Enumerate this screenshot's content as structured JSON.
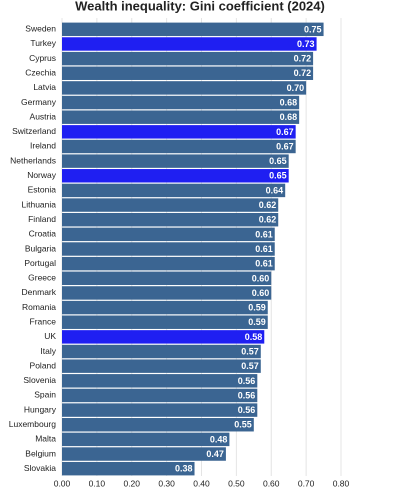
{
  "chart_data": {
    "type": "hbar",
    "title": "Wealth inequality: Gini coefficient (2024)",
    "categories": [
      "Sweden",
      "Turkey",
      "Cyprus",
      "Czechia",
      "Latvia",
      "Germany",
      "Austria",
      "Switzerland",
      "Ireland",
      "Netherlands",
      "Norway",
      "Estonia",
      "Lithuania",
      "Finland",
      "Croatia",
      "Bulgaria",
      "Portugal",
      "Greece",
      "Denmark",
      "Romania",
      "France",
      "UK",
      "Italy",
      "Poland",
      "Slovenia",
      "Spain",
      "Hungary",
      "Luxembourg",
      "Malta",
      "Belgium",
      "Slovakia"
    ],
    "values": [
      0.75,
      0.73,
      0.72,
      0.72,
      0.7,
      0.68,
      0.68,
      0.67,
      0.67,
      0.65,
      0.65,
      0.64,
      0.62,
      0.62,
      0.61,
      0.61,
      0.61,
      0.6,
      0.6,
      0.59,
      0.59,
      0.58,
      0.57,
      0.57,
      0.56,
      0.56,
      0.56,
      0.55,
      0.48,
      0.47,
      0.38
    ],
    "value_labels": [
      "0.75",
      "0.73",
      "0.72",
      "0.72",
      "0.70",
      "0.68",
      "0.68",
      "0.67",
      "0.67",
      "0.65",
      "0.65",
      "0.64",
      "0.62",
      "0.62",
      "0.61",
      "0.61",
      "0.61",
      "0.60",
      "0.60",
      "0.59",
      "0.59",
      "0.58",
      "0.57",
      "0.57",
      "0.56",
      "0.56",
      "0.56",
      "0.55",
      "0.48",
      "0.47",
      "0.38"
    ],
    "colors": [
      "#3b6592",
      "#1f1ff2",
      "#3b6592",
      "#3b6592",
      "#3b6592",
      "#3b6592",
      "#3b6592",
      "#1f1ff2",
      "#3b6592",
      "#3b6592",
      "#1f1ff2",
      "#3b6592",
      "#3b6592",
      "#3b6592",
      "#3b6592",
      "#3b6592",
      "#3b6592",
      "#3b6592",
      "#3b6592",
      "#3b6592",
      "#3b6592",
      "#1f1ff2",
      "#3b6592",
      "#3b6592",
      "#3b6592",
      "#3b6592",
      "#3b6592",
      "#3b6592",
      "#3b6592",
      "#3b6592",
      "#3b6592"
    ],
    "xlim": [
      0,
      0.8
    ],
    "xticks": [
      {
        "value": 0,
        "label": "0.00"
      },
      {
        "value": 0.1,
        "label": "0.10"
      },
      {
        "value": 0.2,
        "label": "0.20"
      },
      {
        "value": 0.3,
        "label": "0.30"
      },
      {
        "value": 0.4,
        "label": "0.40"
      },
      {
        "value": 0.5,
        "label": "0.50"
      },
      {
        "value": 0.6,
        "label": "0.60"
      },
      {
        "value": 0.7,
        "label": "0.70"
      },
      {
        "value": 0.8,
        "label": "0.80"
      }
    ],
    "grid": true
  }
}
